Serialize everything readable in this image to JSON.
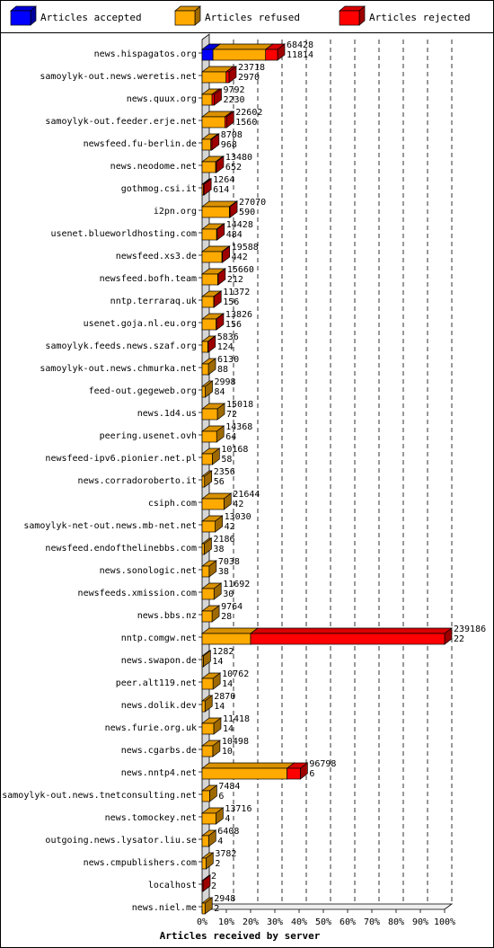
{
  "chart_data": {
    "type": "bar",
    "orientation": "horizontal",
    "stacked": true,
    "xlabel": "Articles received by server",
    "xticks": [
      "0%",
      "10%",
      "20%",
      "30%",
      "40%",
      "50%",
      "60%",
      "70%",
      "80%",
      "90%",
      "100%"
    ],
    "xlim": [
      0,
      100
    ],
    "grid": "vertical dashed",
    "legend_position": "top",
    "series": [
      {
        "name": "Articles accepted",
        "color": "#0000ff"
      },
      {
        "name": "Articles refused",
        "color": "#ffaa00"
      },
      {
        "name": "Articles rejected",
        "color": "#ff0000"
      }
    ],
    "rows": [
      {
        "server": "news.hispagatos.org",
        "top": "68428",
        "bottom": "11814",
        "accepted_pct": 4.5,
        "refused_pct": 21.7,
        "rejected_pct": 4.9
      },
      {
        "server": "samoylyk-out.news.weretis.net",
        "top": "23718",
        "bottom": "2970",
        "accepted_pct": 0,
        "refused_pct": 9.9,
        "rejected_pct": 1.2
      },
      {
        "server": "news.quux.org",
        "top": "9792",
        "bottom": "2230",
        "accepted_pct": 0,
        "refused_pct": 4.1,
        "rejected_pct": 0.9
      },
      {
        "server": "samoylyk-out.feeder.erje.net",
        "top": "22602",
        "bottom": "1560",
        "accepted_pct": 0,
        "refused_pct": 9.4,
        "rejected_pct": 0.7
      },
      {
        "server": "newsfeed.fu-berlin.de",
        "top": "8708",
        "bottom": "968",
        "accepted_pct": 0,
        "refused_pct": 3.6,
        "rejected_pct": 0.4
      },
      {
        "server": "news.neodome.net",
        "top": "13480",
        "bottom": "652",
        "accepted_pct": 0,
        "refused_pct": 5.6,
        "rejected_pct": 0.3
      },
      {
        "server": "gothmog.csi.it",
        "top": "1264",
        "bottom": "614",
        "accepted_pct": 0,
        "refused_pct": 0.5,
        "rejected_pct": 0.3
      },
      {
        "server": "i2pn.org",
        "top": "27070",
        "bottom": "590",
        "accepted_pct": 0,
        "refused_pct": 11.3,
        "rejected_pct": 0.2
      },
      {
        "server": "usenet.blueworldhosting.com",
        "top": "14428",
        "bottom": "484",
        "accepted_pct": 0,
        "refused_pct": 6.0,
        "rejected_pct": 0.2
      },
      {
        "server": "newsfeed.xs3.de",
        "top": "19588",
        "bottom": "442",
        "accepted_pct": 0,
        "refused_pct": 8.2,
        "rejected_pct": 0.2
      },
      {
        "server": "newsfeed.bofh.team",
        "top": "15660",
        "bottom": "212",
        "accepted_pct": 0,
        "refused_pct": 6.5,
        "rejected_pct": 0.1
      },
      {
        "server": "nntp.terraraq.uk",
        "top": "11372",
        "bottom": "156",
        "accepted_pct": 0,
        "refused_pct": 4.8,
        "rejected_pct": 0.1
      },
      {
        "server": "usenet.goja.nl.eu.org",
        "top": "13826",
        "bottom": "156",
        "accepted_pct": 0,
        "refused_pct": 5.8,
        "rejected_pct": 0.1
      },
      {
        "server": "samoylyk.feeds.news.szaf.org",
        "top": "5836",
        "bottom": "124",
        "accepted_pct": 0,
        "refused_pct": 2.4,
        "rejected_pct": 0.1
      },
      {
        "server": "samoylyk-out.news.chmurka.net",
        "top": "6130",
        "bottom": "88",
        "accepted_pct": 0,
        "refused_pct": 2.6,
        "rejected_pct": 0
      },
      {
        "server": "feed-out.gegeweb.org",
        "top": "2998",
        "bottom": "84",
        "accepted_pct": 0,
        "refused_pct": 1.3,
        "rejected_pct": 0
      },
      {
        "server": "news.1d4.us",
        "top": "15018",
        "bottom": "72",
        "accepted_pct": 0,
        "refused_pct": 6.3,
        "rejected_pct": 0
      },
      {
        "server": "peering.usenet.ovh",
        "top": "14368",
        "bottom": "64",
        "accepted_pct": 0,
        "refused_pct": 6.0,
        "rejected_pct": 0
      },
      {
        "server": "newsfeed-ipv6.pionier.net.pl",
        "top": "10168",
        "bottom": "58",
        "accepted_pct": 0,
        "refused_pct": 4.2,
        "rejected_pct": 0
      },
      {
        "server": "news.corradoroberto.it",
        "top": "2356",
        "bottom": "56",
        "accepted_pct": 0,
        "refused_pct": 1.0,
        "rejected_pct": 0
      },
      {
        "server": "csiph.com",
        "top": "21644",
        "bottom": "42",
        "accepted_pct": 0,
        "refused_pct": 9.0,
        "rejected_pct": 0
      },
      {
        "server": "samoylyk-net-out.news.mb-net.net",
        "top": "13030",
        "bottom": "42",
        "accepted_pct": 0,
        "refused_pct": 5.4,
        "rejected_pct": 0
      },
      {
        "server": "newsfeed.endofthelinebbs.com",
        "top": "2186",
        "bottom": "38",
        "accepted_pct": 0,
        "refused_pct": 0.9,
        "rejected_pct": 0
      },
      {
        "server": "news.sonologic.net",
        "top": "7038",
        "bottom": "38",
        "accepted_pct": 0,
        "refused_pct": 2.9,
        "rejected_pct": 0
      },
      {
        "server": "newsfeeds.xmission.com",
        "top": "11692",
        "bottom": "30",
        "accepted_pct": 0,
        "refused_pct": 4.9,
        "rejected_pct": 0
      },
      {
        "server": "news.bbs.nz",
        "top": "9764",
        "bottom": "28",
        "accepted_pct": 0,
        "refused_pct": 4.1,
        "rejected_pct": 0
      },
      {
        "server": "nntp.comgw.net",
        "top": "239186",
        "bottom": "22",
        "accepted_pct": 0,
        "refused_pct": 20.0,
        "rejected_pct": 80.0
      },
      {
        "server": "news.swapon.de",
        "top": "1282",
        "bottom": "14",
        "accepted_pct": 0,
        "refused_pct": 0.5,
        "rejected_pct": 0
      },
      {
        "server": "peer.alt119.net",
        "top": "10762",
        "bottom": "14",
        "accepted_pct": 0,
        "refused_pct": 4.5,
        "rejected_pct": 0
      },
      {
        "server": "news.dolik.dev",
        "top": "2870",
        "bottom": "14",
        "accepted_pct": 0,
        "refused_pct": 1.2,
        "rejected_pct": 0
      },
      {
        "server": "news.furie.org.uk",
        "top": "11418",
        "bottom": "14",
        "accepted_pct": 0,
        "refused_pct": 4.8,
        "rejected_pct": 0
      },
      {
        "server": "news.cgarbs.de",
        "top": "10498",
        "bottom": "10",
        "accepted_pct": 0,
        "refused_pct": 4.4,
        "rejected_pct": 0
      },
      {
        "server": "news.nntp4.net",
        "top": "96798",
        "bottom": "6",
        "accepted_pct": 0,
        "refused_pct": 35.0,
        "rejected_pct": 5.5
      },
      {
        "server": "samoylyk-out.news.tnetconsulting.net",
        "top": "7484",
        "bottom": "6",
        "accepted_pct": 0,
        "refused_pct": 3.1,
        "rejected_pct": 0
      },
      {
        "server": "news.tomockey.net",
        "top": "13716",
        "bottom": "4",
        "accepted_pct": 0,
        "refused_pct": 5.7,
        "rejected_pct": 0
      },
      {
        "server": "outgoing.news.lysator.liu.se",
        "top": "6408",
        "bottom": "4",
        "accepted_pct": 0,
        "refused_pct": 2.7,
        "rejected_pct": 0
      },
      {
        "server": "news.cmpublishers.com",
        "top": "3782",
        "bottom": "2",
        "accepted_pct": 0,
        "refused_pct": 1.6,
        "rejected_pct": 0
      },
      {
        "server": "localhost",
        "top": "2",
        "bottom": "2",
        "accepted_pct": 0,
        "refused_pct": 0,
        "rejected_pct": 0
      },
      {
        "server": "news.niel.me",
        "top": "2948",
        "bottom": "2",
        "accepted_pct": 0,
        "refused_pct": 1.2,
        "rejected_pct": 0
      }
    ]
  }
}
